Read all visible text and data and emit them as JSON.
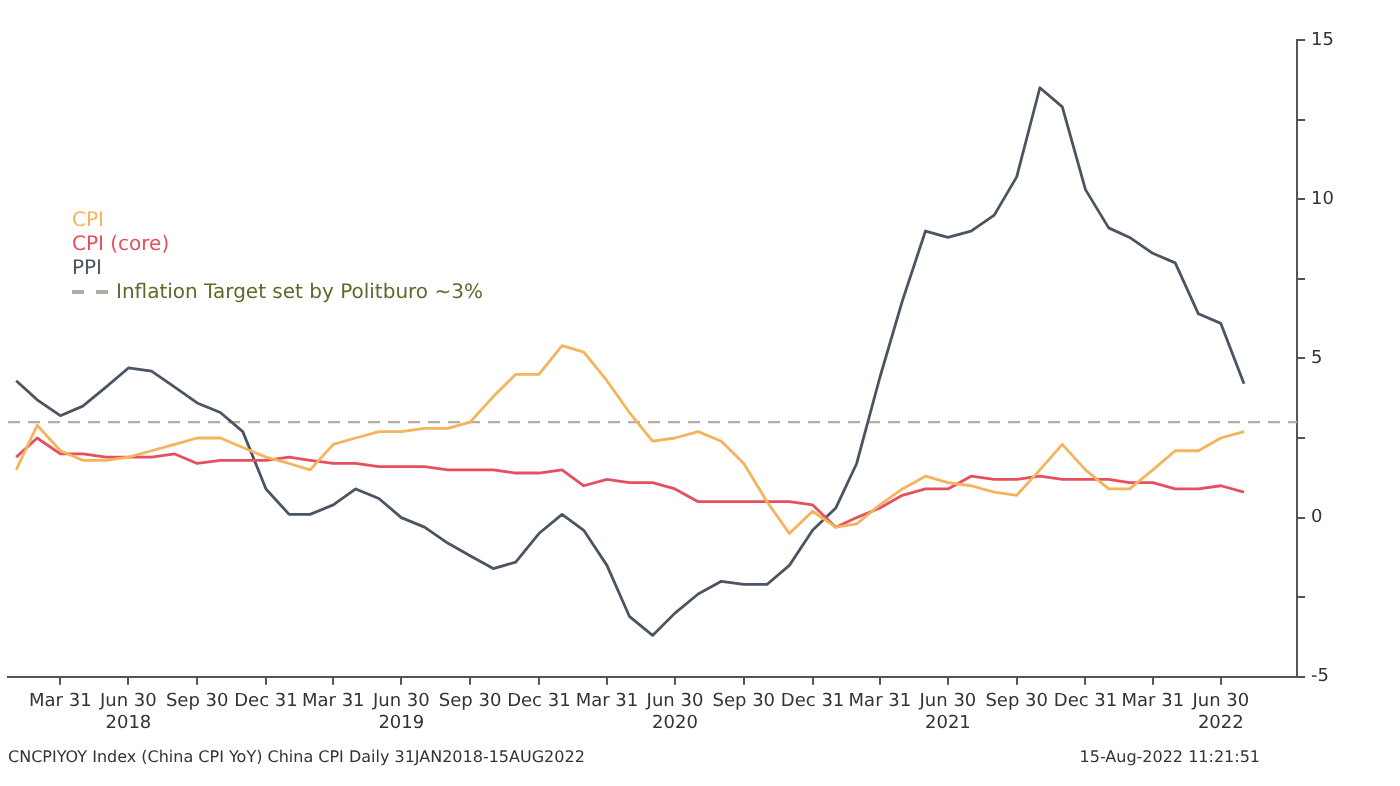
{
  "chart_data": {
    "type": "line",
    "x": [
      "2018-01-31",
      "2018-02-28",
      "2018-03-31",
      "2018-04-30",
      "2018-05-31",
      "2018-06-30",
      "2018-07-31",
      "2018-08-31",
      "2018-09-30",
      "2018-10-31",
      "2018-11-30",
      "2018-12-31",
      "2019-01-31",
      "2019-02-28",
      "2019-03-31",
      "2019-04-30",
      "2019-05-31",
      "2019-06-30",
      "2019-07-31",
      "2019-08-31",
      "2019-09-30",
      "2019-10-31",
      "2019-11-30",
      "2019-12-31",
      "2020-01-31",
      "2020-02-29",
      "2020-03-31",
      "2020-04-30",
      "2020-05-31",
      "2020-06-30",
      "2020-07-31",
      "2020-08-31",
      "2020-09-30",
      "2020-10-31",
      "2020-11-30",
      "2020-12-31",
      "2021-01-31",
      "2021-02-28",
      "2021-03-31",
      "2021-04-30",
      "2021-05-31",
      "2021-06-30",
      "2021-07-31",
      "2021-08-31",
      "2021-09-30",
      "2021-10-31",
      "2021-11-30",
      "2021-12-31",
      "2022-01-31",
      "2022-02-28",
      "2022-03-31",
      "2022-04-30",
      "2022-05-31",
      "2022-06-30",
      "2022-07-31"
    ],
    "series": [
      {
        "name": "CPI",
        "color": "#f5b35c",
        "values": [
          1.5,
          2.9,
          2.1,
          1.8,
          1.8,
          1.9,
          2.1,
          2.3,
          2.5,
          2.5,
          2.2,
          1.9,
          1.7,
          1.5,
          2.3,
          2.5,
          2.7,
          2.7,
          2.8,
          2.8,
          3.0,
          3.8,
          4.5,
          4.5,
          5.4,
          5.2,
          4.3,
          3.3,
          2.4,
          2.5,
          2.7,
          2.4,
          1.7,
          0.5,
          -0.5,
          0.2,
          -0.3,
          -0.2,
          0.4,
          0.9,
          1.3,
          1.1,
          1.0,
          0.8,
          0.7,
          1.5,
          2.3,
          1.5,
          0.9,
          0.9,
          1.5,
          2.1,
          2.1,
          2.5,
          2.7
        ]
      },
      {
        "name": "CPI (core)",
        "color": "#e5505e",
        "values": [
          1.9,
          2.5,
          2.0,
          2.0,
          1.9,
          1.9,
          1.9,
          2.0,
          1.7,
          1.8,
          1.8,
          1.8,
          1.9,
          1.8,
          1.7,
          1.7,
          1.6,
          1.6,
          1.6,
          1.5,
          1.5,
          1.5,
          1.4,
          1.4,
          1.5,
          1.0,
          1.2,
          1.1,
          1.1,
          0.9,
          0.5,
          0.5,
          0.5,
          0.5,
          0.5,
          0.4,
          -0.3,
          0.0,
          0.3,
          0.7,
          0.9,
          0.9,
          1.3,
          1.2,
          1.2,
          1.3,
          1.2,
          1.2,
          1.2,
          1.1,
          1.1,
          0.9,
          0.9,
          1.0,
          0.8
        ]
      },
      {
        "name": "PPI",
        "color": "#4b5562",
        "values": [
          4.3,
          3.7,
          3.2,
          3.5,
          4.1,
          4.7,
          4.6,
          4.1,
          3.6,
          3.3,
          2.7,
          0.9,
          0.1,
          0.1,
          0.4,
          0.9,
          0.6,
          0.0,
          -0.3,
          -0.8,
          -1.2,
          -1.6,
          -1.4,
          -0.5,
          0.1,
          -0.4,
          -1.5,
          -3.1,
          -3.7,
          -3.0,
          -2.4,
          -2.0,
          -2.1,
          -2.1,
          -1.5,
          -0.4,
          0.3,
          1.7,
          4.4,
          6.8,
          9.0,
          8.8,
          9.0,
          9.5,
          10.7,
          13.5,
          12.9,
          10.3,
          9.1,
          8.8,
          8.3,
          8.0,
          6.4,
          6.1,
          4.2
        ]
      }
    ],
    "ref_lines": [
      {
        "axis": "y",
        "value": 3,
        "label": "Inflation Target set by Politburo ~3%",
        "color": "#b5aca3",
        "line_style": "dashed"
      }
    ],
    "xlim": [
      "2018-01-20",
      "2022-10-10"
    ],
    "xticks": [
      {
        "value": "2018-03-31",
        "label": "Mar 31"
      },
      {
        "value": "2018-06-30",
        "label": "Jun 30\n2018"
      },
      {
        "value": "2018-09-30",
        "label": "Sep 30"
      },
      {
        "value": "2018-12-31",
        "label": "Dec 31"
      },
      {
        "value": "2019-03-31",
        "label": "Mar 31"
      },
      {
        "value": "2019-06-30",
        "label": "Jun 30\n2019"
      },
      {
        "value": "2019-09-30",
        "label": "Sep 30"
      },
      {
        "value": "2019-12-31",
        "label": "Dec 31"
      },
      {
        "value": "2020-03-31",
        "label": "Mar 31"
      },
      {
        "value": "2020-06-30",
        "label": "Jun 30\n2020"
      },
      {
        "value": "2020-09-30",
        "label": "Sep 30"
      },
      {
        "value": "2020-12-31",
        "label": "Dec 31"
      },
      {
        "value": "2021-03-31",
        "label": "Mar 31"
      },
      {
        "value": "2021-06-30",
        "label": "Jun 30\n2021"
      },
      {
        "value": "2021-09-30",
        "label": "Sep 30"
      },
      {
        "value": "2021-12-31",
        "label": "Dec 31"
      },
      {
        "value": "2022-03-31",
        "label": "Mar 31"
      },
      {
        "value": "2022-06-30",
        "label": "Jun 30\n2022"
      }
    ],
    "ylim": [
      -5,
      15
    ],
    "yticks": [
      -5,
      {
        "value": -2.5,
        "label": null
      },
      0,
      {
        "value": 2.5,
        "label": null
      },
      5,
      {
        "value": 7.5,
        "label": null
      },
      10,
      {
        "value": 12.5,
        "label": null
      },
      15
    ],
    "grid": false,
    "legend": "top left",
    "marker": "none",
    "line_style": "solid",
    "annotations": [
      "CNCPIYOY Index (China CPI YoY) China CPI  Daily 31JAN2018-15AUG2022",
      "15-Aug-2022 11:21:51"
    ]
  }
}
